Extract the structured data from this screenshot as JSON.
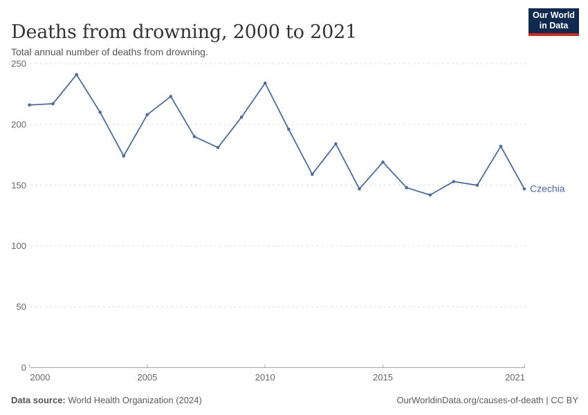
{
  "header": {
    "title": "Deaths from drowning, 2000 to 2021",
    "subtitle": "Total annual number of deaths from drowning.",
    "logo": {
      "line1": "Our World",
      "line2": "in Data"
    }
  },
  "chart_data": {
    "type": "line",
    "title": "Deaths from drowning, 2000 to 2021",
    "xlabel": "",
    "ylabel": "",
    "x": [
      2000,
      2001,
      2002,
      2003,
      2004,
      2005,
      2006,
      2007,
      2008,
      2009,
      2010,
      2011,
      2012,
      2013,
      2014,
      2015,
      2016,
      2017,
      2018,
      2019,
      2020,
      2021
    ],
    "series": [
      {
        "name": "Czechia",
        "values": [
          216,
          217,
          241,
          210,
          174,
          208,
          223,
          190,
          181,
          206,
          234,
          196,
          159,
          184,
          147,
          169,
          148,
          142,
          153,
          150,
          182,
          147
        ]
      }
    ],
    "ylim": [
      0,
      250
    ],
    "yticks": [
      0,
      50,
      100,
      150,
      200,
      250
    ],
    "xticks": [
      2000,
      2005,
      2010,
      2015,
      2021
    ],
    "grid": "horizontal-dashed",
    "legend_position": "end-of-line-label"
  },
  "footer": {
    "source_label": "Data source:",
    "source_text": " World Health Organization (2024)",
    "attribution": "OurWorldinData.org/causes-of-death | CC BY"
  },
  "colors": {
    "line": "#4C6A9C",
    "entity_label": "#4C6A9C",
    "grid": "#DDDDDD",
    "axis": "#A5A5A5",
    "tick_label": "#666666",
    "title": "#333333",
    "subtitle": "#555555",
    "logo_bg": "#0F2A4E",
    "logo_accent": "#CD2A24"
  }
}
